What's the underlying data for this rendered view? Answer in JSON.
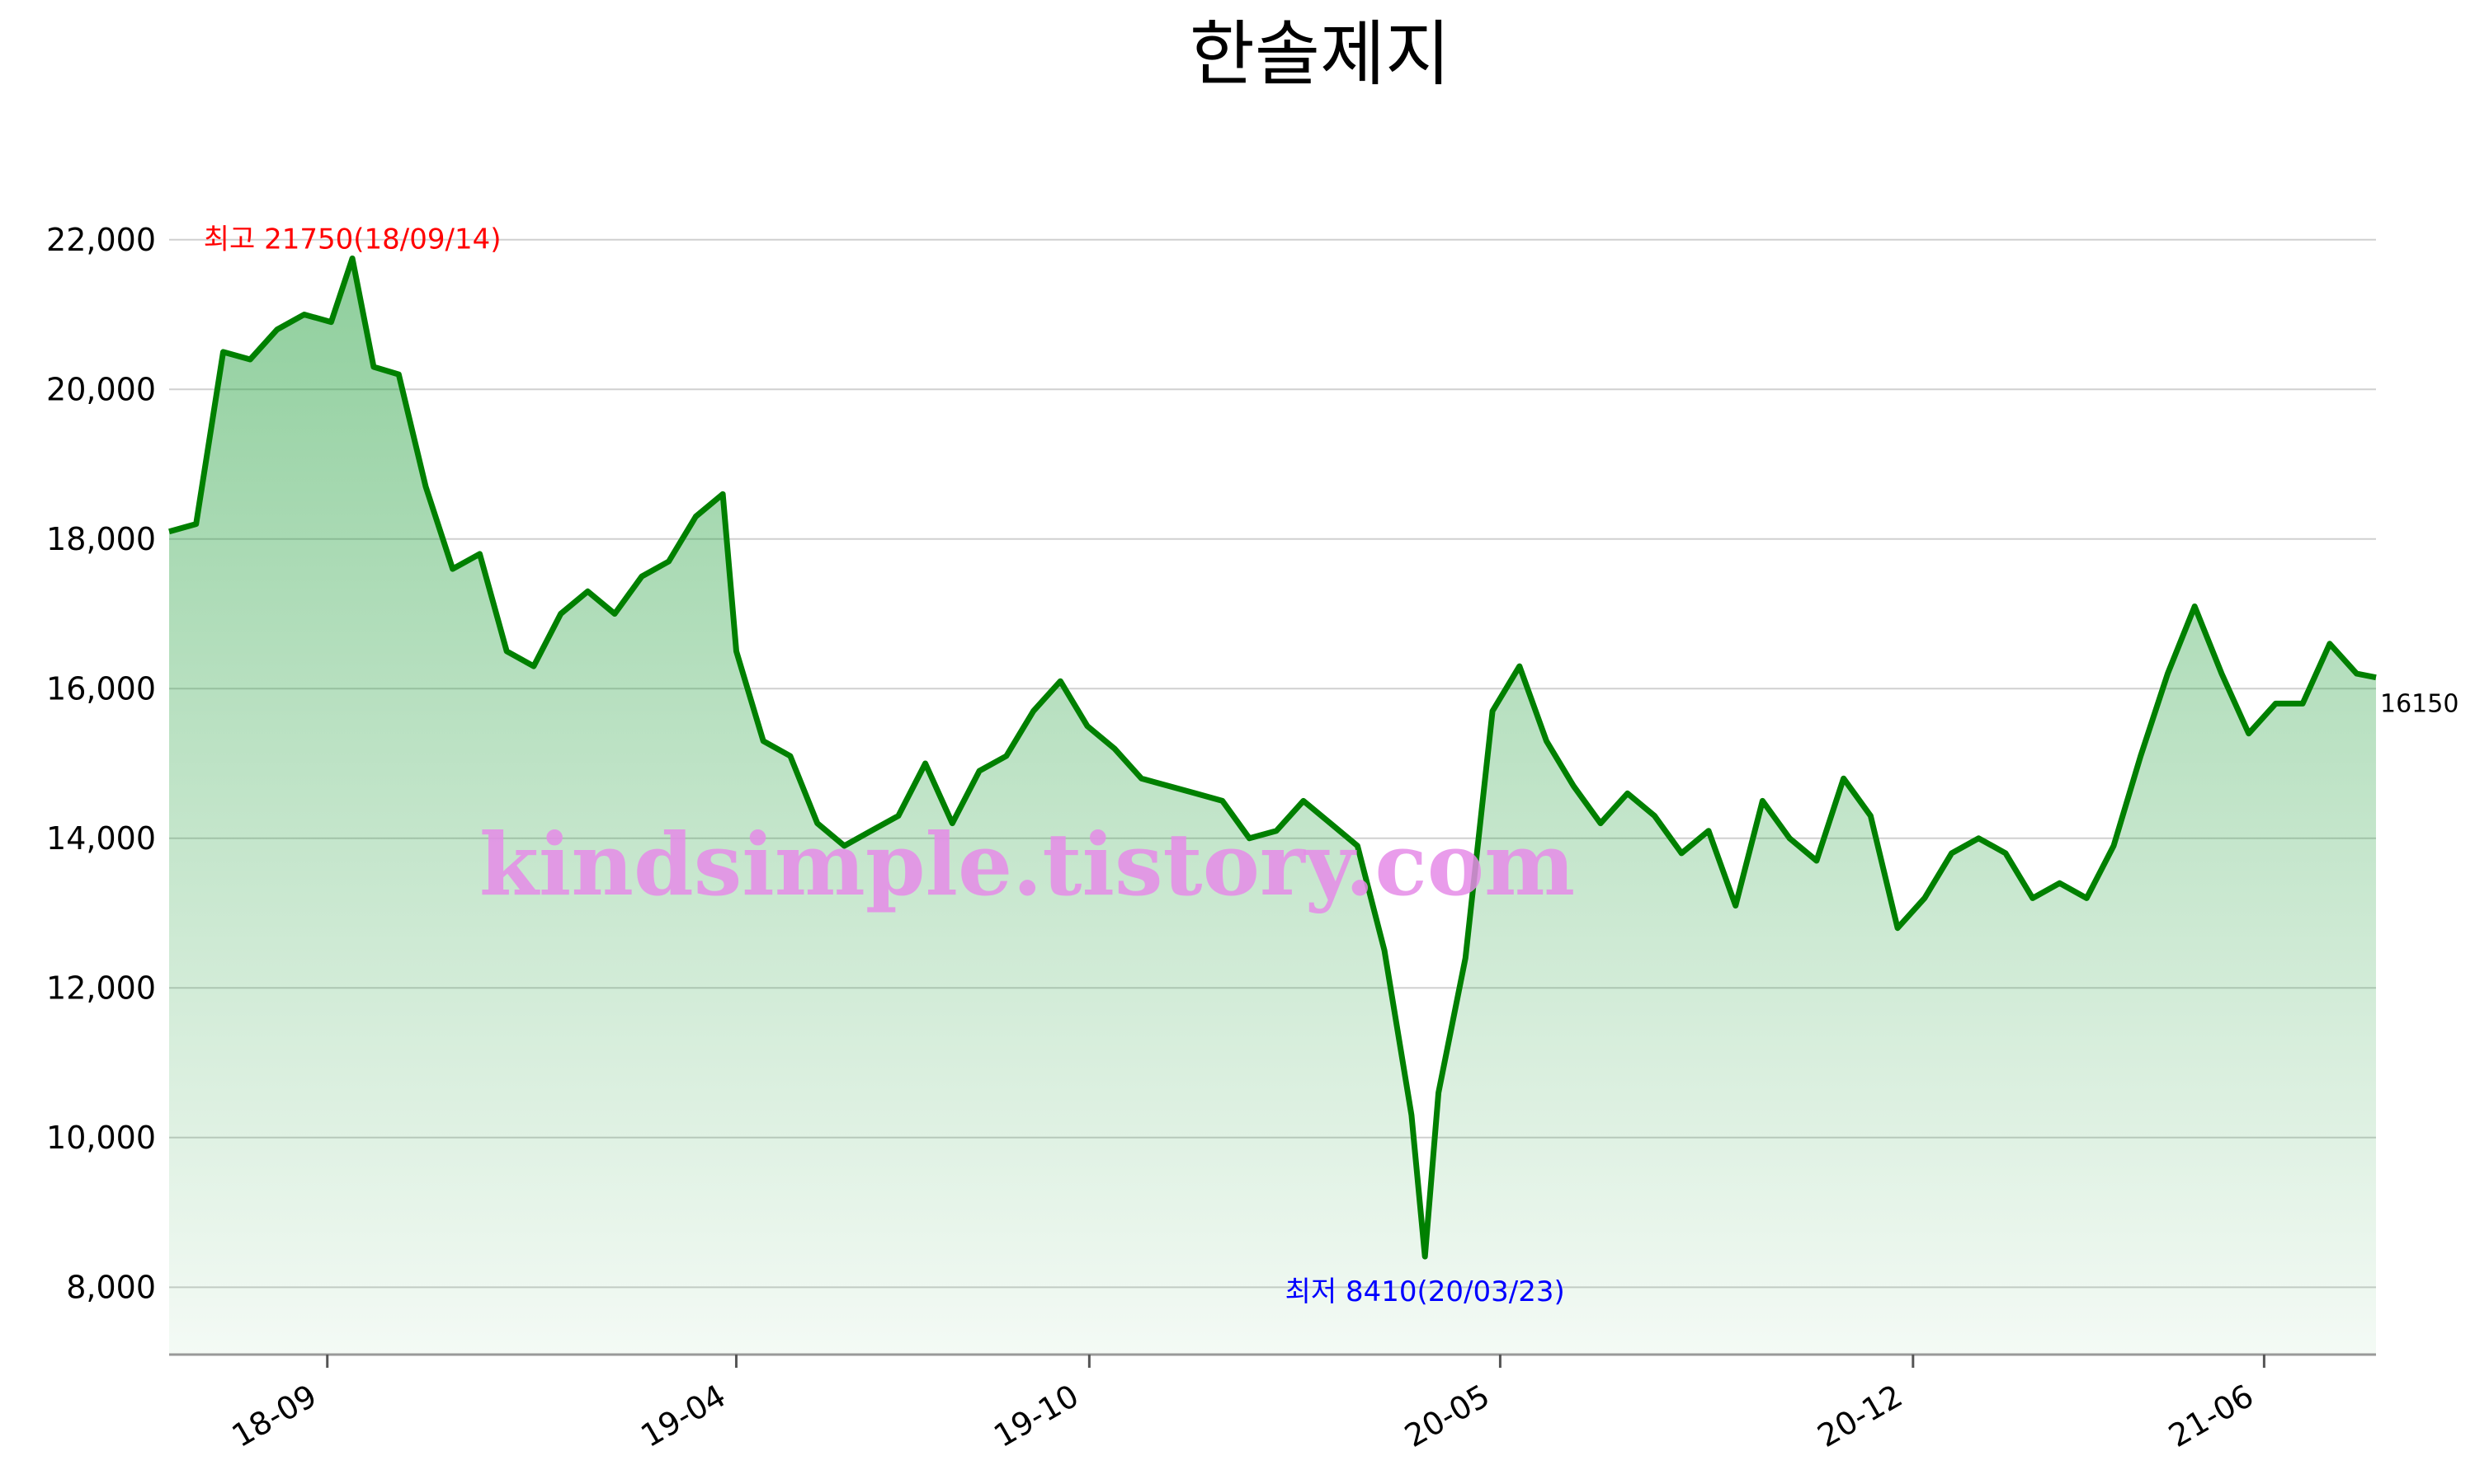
{
  "chart_data": {
    "type": "area",
    "title": "한솔제지",
    "xlabel": "",
    "ylabel": "",
    "ylim": [
      7100,
      23000
    ],
    "yticks": [
      8000,
      10000,
      12000,
      14000,
      16000,
      18000,
      20000,
      22000
    ],
    "ytick_labels": [
      "8,000",
      "10,000",
      "12,000",
      "14,000",
      "16,000",
      "18,000",
      "20,000",
      "22,000"
    ],
    "xlim": [
      "2018-06-11",
      "2021-07-29"
    ],
    "xticks": [
      "2018-09-01",
      "2019-04-01",
      "2019-10-01",
      "2020-05-01",
      "2020-12-01",
      "2021-06-01"
    ],
    "xtick_labels": [
      "18-09",
      "19-04",
      "19-10",
      "20-05",
      "20-12",
      "21-06"
    ],
    "grid": true,
    "colors": {
      "line": "#008000",
      "fill": "#1f9e3a",
      "grid": "#d0d0d0",
      "high": "#ff0000",
      "low": "#0000ff",
      "watermark": "#e58be8"
    },
    "annotations": {
      "high": {
        "text": "최고 21750(18/09/14)",
        "date": "2018-09-14",
        "value": 21750
      },
      "low": {
        "text": "최저 8410(20/03/23)",
        "date": "2020-03-23",
        "value": 8410
      },
      "last": {
        "text": "16150",
        "value": 16150
      }
    },
    "watermark": "kindsimple.tistory.com",
    "x": [
      "2018-06-11",
      "2018-06-25",
      "2018-07-09",
      "2018-07-23",
      "2018-08-06",
      "2018-08-20",
      "2018-09-03",
      "2018-09-14",
      "2018-09-25",
      "2018-10-08",
      "2018-10-22",
      "2018-11-05",
      "2018-11-19",
      "2018-12-03",
      "2018-12-17",
      "2018-12-31",
      "2019-01-14",
      "2019-01-28",
      "2019-02-11",
      "2019-02-25",
      "2019-03-11",
      "2019-03-25",
      "2019-04-01",
      "2019-04-15",
      "2019-04-29",
      "2019-05-13",
      "2019-05-27",
      "2019-06-10",
      "2019-06-24",
      "2019-07-08",
      "2019-07-22",
      "2019-08-05",
      "2019-08-19",
      "2019-09-02",
      "2019-09-16",
      "2019-09-30",
      "2019-10-14",
      "2019-10-28",
      "2019-11-11",
      "2019-11-25",
      "2019-12-09",
      "2019-12-23",
      "2020-01-06",
      "2020-01-20",
      "2020-02-03",
      "2020-02-17",
      "2020-03-02",
      "2020-03-16",
      "2020-03-23",
      "2020-03-30",
      "2020-04-13",
      "2020-04-27",
      "2020-05-11",
      "2020-05-25",
      "2020-06-08",
      "2020-06-22",
      "2020-07-06",
      "2020-07-20",
      "2020-08-03",
      "2020-08-17",
      "2020-08-31",
      "2020-09-14",
      "2020-09-28",
      "2020-10-12",
      "2020-10-26",
      "2020-11-09",
      "2020-11-23",
      "2020-12-07",
      "2020-12-21",
      "2021-01-04",
      "2021-01-18",
      "2021-02-01",
      "2021-02-15",
      "2021-03-01",
      "2021-03-15",
      "2021-03-29",
      "2021-04-12",
      "2021-04-26",
      "2021-05-10",
      "2021-05-24",
      "2021-06-07",
      "2021-06-21",
      "2021-07-05",
      "2021-07-19",
      "2021-07-29"
    ],
    "y": [
      18100,
      18200,
      20500,
      20400,
      20800,
      21000,
      20900,
      21750,
      20300,
      20200,
      18700,
      17600,
      17800,
      16500,
      16300,
      17000,
      17300,
      17000,
      17500,
      17700,
      18300,
      18600,
      16500,
      15300,
      15100,
      14200,
      13900,
      14100,
      14300,
      15000,
      14200,
      14900,
      15100,
      15700,
      16100,
      15500,
      15200,
      14800,
      14700,
      14600,
      14500,
      14000,
      14100,
      14500,
      14200,
      13900,
      12500,
      10300,
      8410,
      10600,
      12400,
      15700,
      16300,
      15300,
      14700,
      14200,
      14600,
      14300,
      13800,
      14100,
      13100,
      14500,
      14000,
      13700,
      14800,
      14300,
      12800,
      13200,
      13800,
      14000,
      13800,
      13200,
      13400,
      13200,
      13900,
      15100,
      16200,
      17100,
      16200,
      15400,
      15800,
      15800,
      16600,
      16200,
      16150
    ]
  }
}
